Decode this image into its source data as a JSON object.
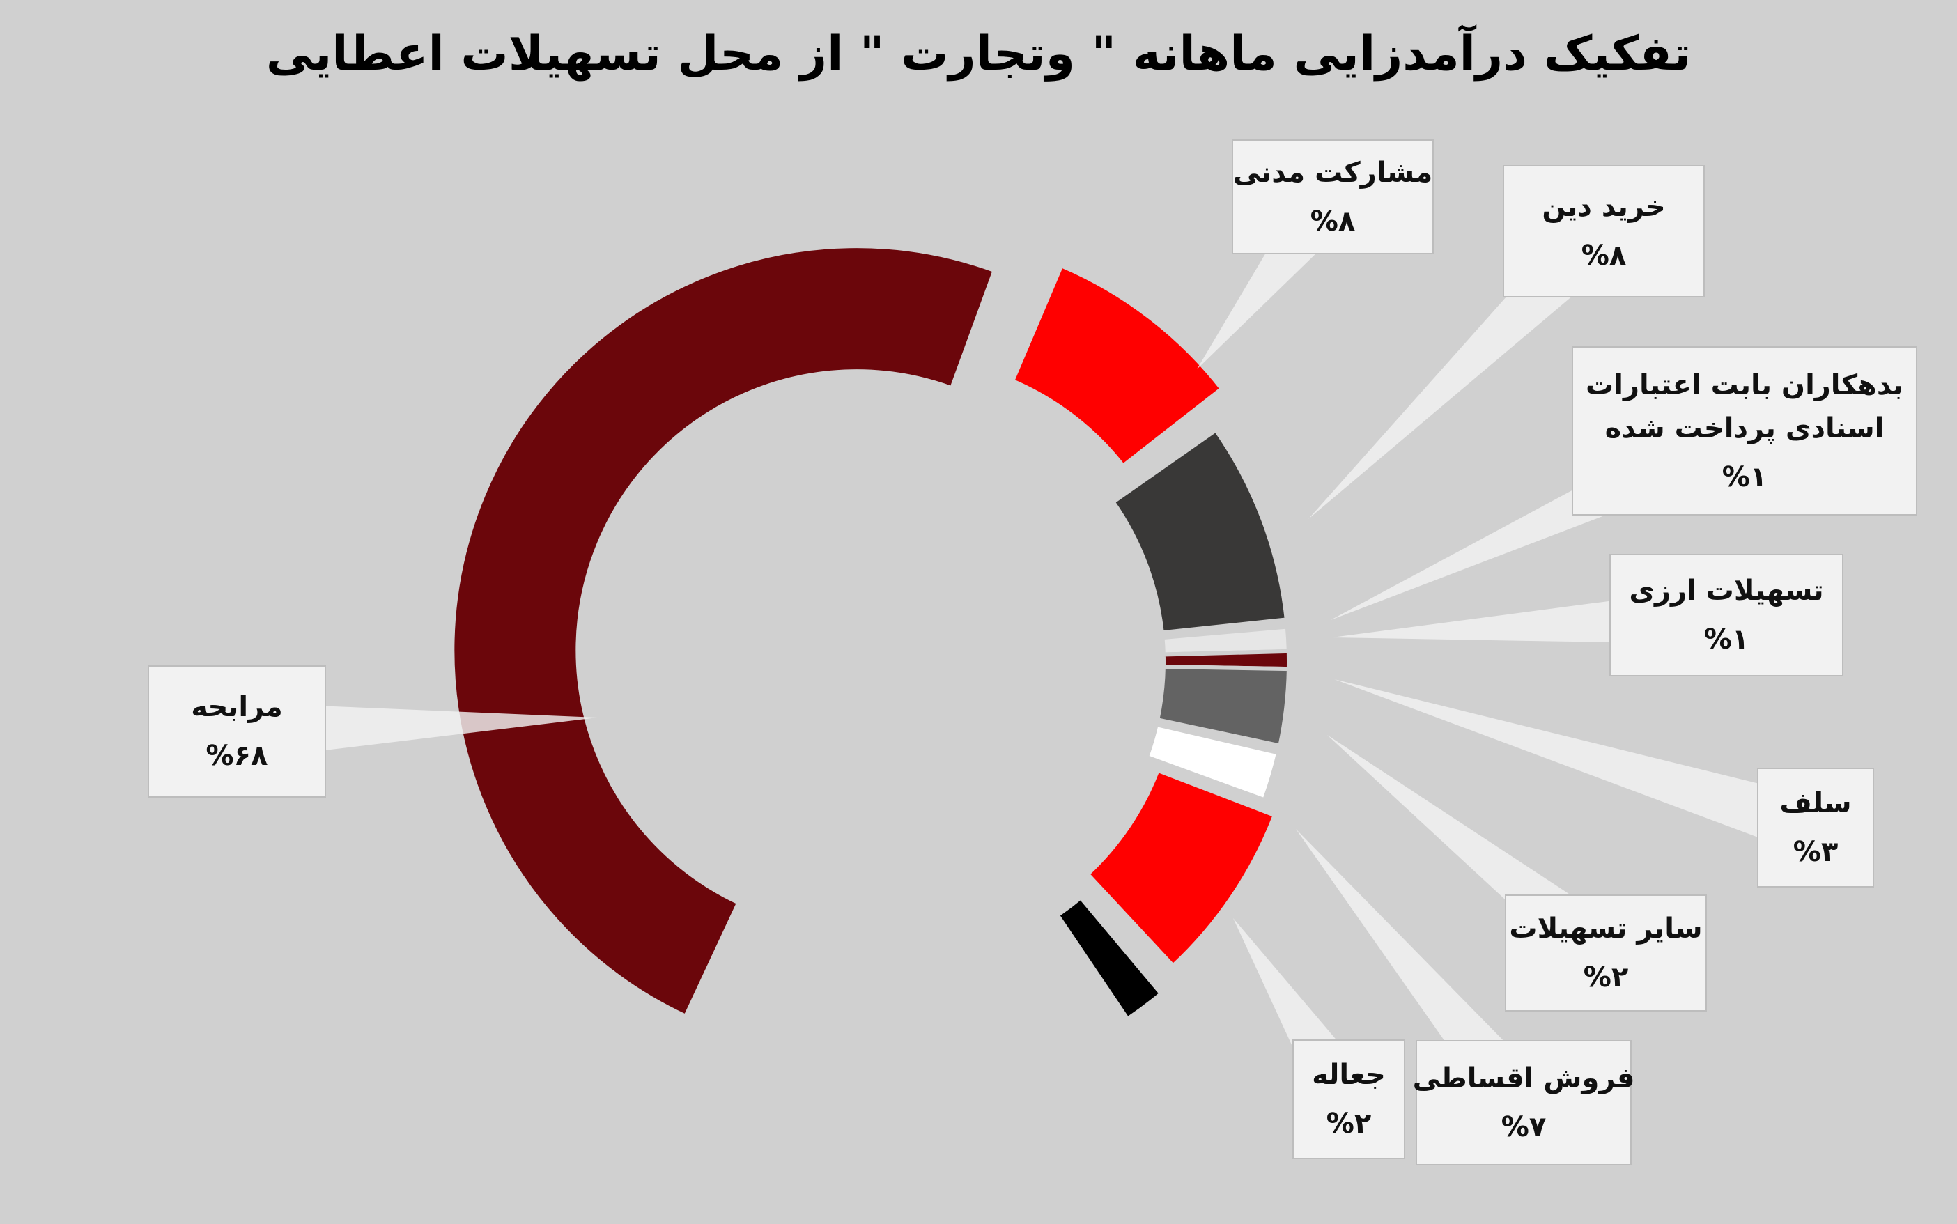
{
  "chart_data": {
    "type": "pie",
    "variant": "donut",
    "title": "تفکیک درآمدزایی ماهانه \" وتجارت \" از محل تسهیلات اعطایی",
    "slices": [
      {
        "label": "مرابحه",
        "value": 68,
        "value_text": "%۶۸",
        "color": "#6b060b"
      },
      {
        "label": "مشارکت مدنی",
        "value": 8,
        "value_text": "%۸",
        "color": "#ff0000"
      },
      {
        "label": "خرید دین",
        "value": 8,
        "value_text": "%۸",
        "color": "#393837"
      },
      {
        "label": "بدهکاران بابت اعتبارات اسنادی پرداخت شده",
        "label_lines": [
          "بدهکاران بابت اعتبارات",
          "اسنادی پرداخت شده"
        ],
        "value": 1,
        "value_text": "%۱",
        "color": "#e6e6e6"
      },
      {
        "label": "تسهیلات ارزی",
        "value": 1,
        "value_text": "%۱",
        "color": "#6b060b"
      },
      {
        "label": "سلف",
        "value": 3,
        "value_text": "%۳",
        "color": "#636363"
      },
      {
        "label": "سایر تسهیلات",
        "value": 2,
        "value_text": "%۲",
        "color": "#ffffff"
      },
      {
        "label": "فروش اقساطی",
        "value": 7,
        "value_text": "%۷",
        "color": "#ff0000"
      },
      {
        "label": "جعاله",
        "value": 2,
        "value_text": "%۲",
        "color": "#000000"
      }
    ]
  }
}
